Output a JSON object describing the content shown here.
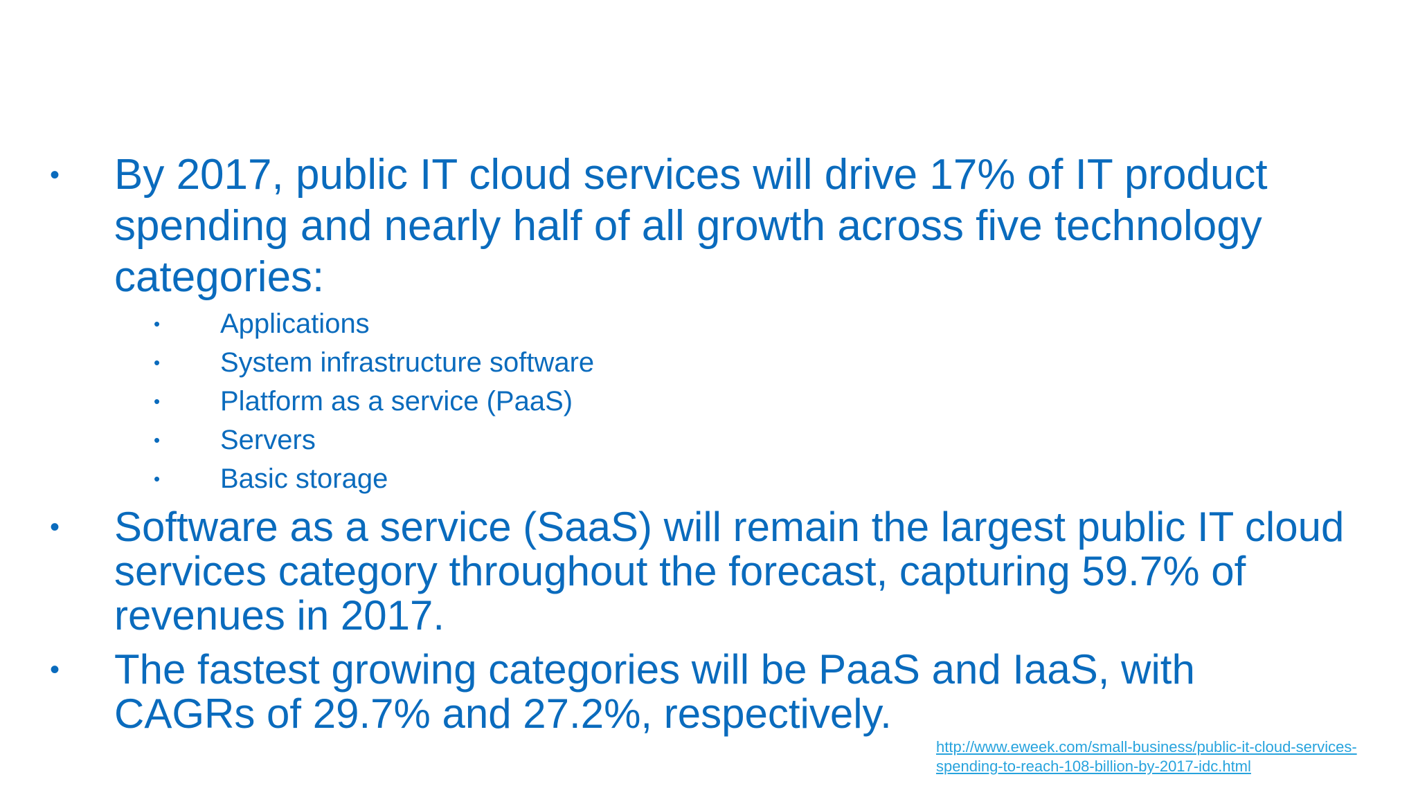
{
  "slide": {
    "bullets": [
      {
        "symbol": "•",
        "text": "By 2017, public IT cloud services will drive 17% of IT product\nspending and nearly half of all growth across five technology\ncategories:"
      },
      {
        "symbol": "•",
        "text": "Software as a service (SaaS) will remain the largest public IT cloud\nservices category throughout the forecast, capturing 59.7% of\nrevenues in 2017."
      },
      {
        "symbol": "•",
        "text": "The fastest growing categories will be PaaS and IaaS, with\nCAGRs of 29.7% and 27.2%, respectively."
      }
    ],
    "sub_bullets": [
      {
        "symbol": "•",
        "text": "Applications"
      },
      {
        "symbol": "•",
        "text": "System infrastructure software"
      },
      {
        "symbol": "•",
        "text": "Platform as a service (PaaS)"
      },
      {
        "symbol": "•",
        "text": "Servers"
      },
      {
        "symbol": "•",
        "text": "Basic storage"
      }
    ],
    "source_link": "http://www.eweek.com/small-business/public-it-cloud-services-\nspending-to-reach-108-billion-by-2017-idc.html",
    "colors": {
      "text": "#0a6bbd",
      "link": "#27a3dd",
      "background": "#ffffff"
    }
  }
}
